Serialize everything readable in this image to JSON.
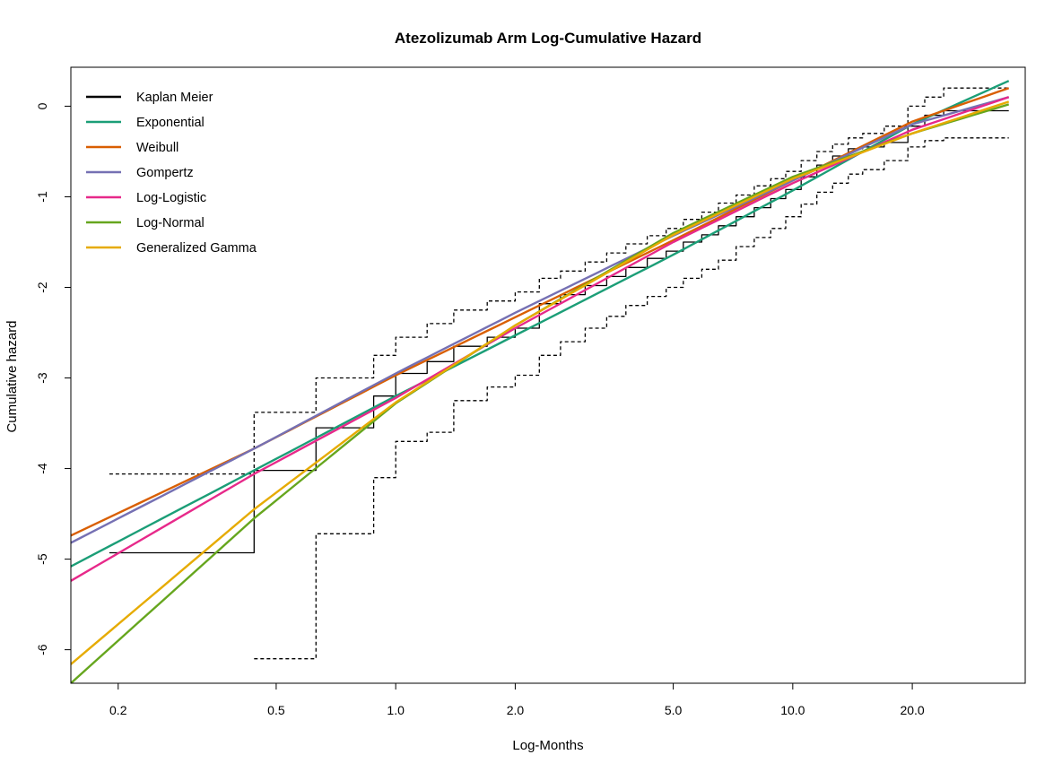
{
  "chart_data": {
    "type": "line",
    "title": "Atezolizumab Arm Log-Cumulative Hazard",
    "xlabel": "Log-Months",
    "ylabel": "Cumulative hazard",
    "x_scale": "log",
    "xlim": [
      0.152,
      38.5
    ],
    "ylim": [
      -6.37,
      0.43
    ],
    "x_ticks": [
      {
        "value": 0.2,
        "label": "0.2"
      },
      {
        "value": 0.5,
        "label": "0.5"
      },
      {
        "value": 1.0,
        "label": "1.0"
      },
      {
        "value": 2.0,
        "label": "2.0"
      },
      {
        "value": 5.0,
        "label": "5.0"
      },
      {
        "value": 10.0,
        "label": "10.0"
      },
      {
        "value": 20.0,
        "label": "20.0"
      }
    ],
    "y_ticks": [
      {
        "value": 0,
        "label": "0"
      },
      {
        "value": -1,
        "label": "-1"
      },
      {
        "value": -2,
        "label": "-2"
      },
      {
        "value": -3,
        "label": "-3"
      },
      {
        "value": -4,
        "label": "-4"
      },
      {
        "value": -5,
        "label": "-5"
      },
      {
        "value": -6,
        "label": "-6"
      }
    ],
    "legend_position": "top-left",
    "grid": false,
    "series": [
      {
        "name": "Kaplan Meier",
        "color": "#000000",
        "step": true,
        "x": [
          0.19,
          0.44,
          0.63,
          0.88,
          1.0,
          1.2,
          1.4,
          1.7,
          2.0,
          2.3,
          2.6,
          3.0,
          3.4,
          3.8,
          4.3,
          4.8,
          5.3,
          5.9,
          6.5,
          7.2,
          8.0,
          8.8,
          9.6,
          10.5,
          11.5,
          12.6,
          13.8,
          15.0,
          17.0,
          19.5,
          21.5,
          24.0,
          35.0
        ],
        "y": [
          -4.93,
          -4.02,
          -3.55,
          -3.2,
          -2.95,
          -2.82,
          -2.65,
          -2.55,
          -2.45,
          -2.18,
          -2.08,
          -1.98,
          -1.88,
          -1.78,
          -1.68,
          -1.6,
          -1.5,
          -1.42,
          -1.32,
          -1.22,
          -1.12,
          -1.02,
          -0.92,
          -0.78,
          -0.65,
          -0.55,
          -0.47,
          -0.45,
          -0.4,
          -0.22,
          -0.1,
          -0.05,
          -0.05
        ]
      },
      {
        "name": "KM Upper CI",
        "color": "#000000",
        "dashed": true,
        "step": true,
        "x": [
          0.19,
          0.44,
          0.63,
          0.88,
          1.0,
          1.2,
          1.4,
          1.7,
          2.0,
          2.3,
          2.6,
          3.0,
          3.4,
          3.8,
          4.3,
          4.8,
          5.3,
          5.9,
          6.5,
          7.2,
          8.0,
          8.8,
          9.6,
          10.5,
          11.5,
          12.6,
          13.8,
          15.0,
          17.0,
          19.5,
          21.5,
          24.0,
          35.0
        ],
        "y": [
          -4.06,
          -3.38,
          -3.0,
          -2.75,
          -2.55,
          -2.4,
          -2.25,
          -2.15,
          -2.05,
          -1.9,
          -1.82,
          -1.72,
          -1.62,
          -1.52,
          -1.43,
          -1.35,
          -1.25,
          -1.17,
          -1.07,
          -0.98,
          -0.88,
          -0.8,
          -0.72,
          -0.6,
          -0.5,
          -0.42,
          -0.35,
          -0.3,
          -0.22,
          0.0,
          0.1,
          0.2,
          0.2
        ]
      },
      {
        "name": "KM Lower CI",
        "color": "#000000",
        "dashed": true,
        "step": true,
        "x": [
          0.44,
          0.63,
          0.88,
          1.0,
          1.2,
          1.4,
          1.7,
          2.0,
          2.3,
          2.6,
          3.0,
          3.4,
          3.8,
          4.3,
          4.8,
          5.3,
          5.9,
          6.5,
          7.2,
          8.0,
          8.8,
          9.6,
          10.5,
          11.5,
          12.6,
          13.8,
          15.0,
          17.0,
          19.5,
          21.5,
          24.0,
          35.0
        ],
        "y": [
          -6.1,
          -4.72,
          -4.1,
          -3.7,
          -3.6,
          -3.25,
          -3.1,
          -2.97,
          -2.75,
          -2.6,
          -2.45,
          -2.32,
          -2.2,
          -2.1,
          -2.0,
          -1.9,
          -1.8,
          -1.7,
          -1.55,
          -1.45,
          -1.35,
          -1.22,
          -1.08,
          -0.95,
          -0.85,
          -0.75,
          -0.7,
          -0.6,
          -0.45,
          -0.38,
          -0.35,
          -0.35
        ]
      },
      {
        "name": "Exponential",
        "color": "#1B9E77",
        "x": [
          0.152,
          0.44,
          1.0,
          2.0,
          5.0,
          10.0,
          20.0,
          35.0
        ],
        "y": [
          -5.08,
          -4.02,
          -3.2,
          -2.53,
          -1.64,
          -0.93,
          -0.2,
          0.28
        ]
      },
      {
        "name": "Weibull",
        "color": "#D95F02",
        "x": [
          0.152,
          0.44,
          1.0,
          2.0,
          5.0,
          10.0,
          20.0,
          35.0
        ],
        "y": [
          -4.74,
          -3.78,
          -2.97,
          -2.33,
          -1.48,
          -0.82,
          -0.17,
          0.2
        ]
      },
      {
        "name": "Gompertz",
        "color": "#7570B3",
        "x": [
          0.152,
          0.44,
          1.0,
          2.0,
          5.0,
          10.0,
          20.0,
          35.0
        ],
        "y": [
          -4.82,
          -3.78,
          -2.95,
          -2.28,
          -1.43,
          -0.82,
          -0.2,
          0.1
        ]
      },
      {
        "name": "Log-Logistic",
        "color": "#E7298A",
        "x": [
          0.152,
          0.44,
          1.0,
          2.0,
          5.0,
          10.0,
          20.0,
          35.0
        ],
        "y": [
          -5.24,
          -4.06,
          -3.22,
          -2.45,
          -1.5,
          -0.85,
          -0.26,
          0.1
        ]
      },
      {
        "name": "Log-Normal",
        "color": "#66A61E",
        "x": [
          0.152,
          0.44,
          1.0,
          2.0,
          5.0,
          10.0,
          20.0,
          35.0
        ],
        "y": [
          -6.37,
          -4.55,
          -3.28,
          -2.42,
          -1.4,
          -0.78,
          -0.3,
          0.02
        ]
      },
      {
        "name": "Generalized Gamma",
        "color": "#E6AB02",
        "x": [
          0.152,
          0.44,
          1.0,
          2.0,
          5.0,
          10.0,
          20.0,
          35.0
        ],
        "y": [
          -6.16,
          -4.45,
          -3.27,
          -2.42,
          -1.42,
          -0.8,
          -0.3,
          0.05
        ]
      }
    ],
    "legend": [
      {
        "name": "Kaplan Meier",
        "color": "#000000"
      },
      {
        "name": "Exponential",
        "color": "#1B9E77"
      },
      {
        "name": "Weibull",
        "color": "#D95F02"
      },
      {
        "name": "Gompertz",
        "color": "#7570B3"
      },
      {
        "name": "Log-Logistic",
        "color": "#E7298A"
      },
      {
        "name": "Log-Normal",
        "color": "#66A61E"
      },
      {
        "name": "Generalized Gamma",
        "color": "#E6AB02"
      }
    ]
  }
}
